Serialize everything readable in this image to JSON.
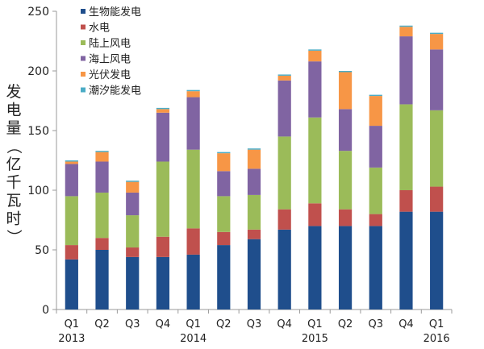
{
  "chart_data": {
    "type": "bar",
    "stacked": true,
    "title": "",
    "xlabel": "",
    "ylabel": "发电量（亿千瓦时）",
    "ylim": [
      0,
      250
    ],
    "yticks": [
      0,
      50,
      100,
      150,
      200,
      250
    ],
    "grid": false,
    "legend_position": "top-left",
    "categories": [
      "Q1 2013",
      "Q2",
      "Q3",
      "Q4",
      "Q1 2014",
      "Q2",
      "Q3",
      "Q4",
      "Q1 2015",
      "Q2",
      "Q3",
      "Q4",
      "Q1 2016"
    ],
    "quarter_labels": [
      "Q1",
      "Q2",
      "Q3",
      "Q4",
      "Q1",
      "Q2",
      "Q3",
      "Q4",
      "Q1",
      "Q2",
      "Q3",
      "Q4",
      "Q1"
    ],
    "year_labels": [
      "2013",
      "",
      "",
      "",
      "2014",
      "",
      "",
      "",
      "2015",
      "",
      "",
      "",
      "2016"
    ],
    "series": [
      {
        "name": "生物能发电",
        "color": "#1f4e8c",
        "values": [
          42,
          50,
          44,
          44,
          46,
          54,
          59,
          67,
          70,
          70,
          70,
          82,
          82
        ]
      },
      {
        "name": "水电",
        "color": "#c0504d",
        "values": [
          12,
          10,
          8,
          17,
          22,
          11,
          8,
          17,
          19,
          14,
          10,
          18,
          21
        ]
      },
      {
        "name": "陆上风电",
        "color": "#9bbb59",
        "values": [
          41,
          38,
          27,
          63,
          66,
          30,
          29,
          61,
          72,
          49,
          39,
          72,
          64
        ]
      },
      {
        "name": "海上风电",
        "color": "#8064a2",
        "values": [
          27,
          26,
          19,
          41,
          44,
          21,
          22,
          47,
          47,
          35,
          35,
          57,
          51
        ]
      },
      {
        "name": "光伏发电",
        "color": "#f79646",
        "values": [
          2,
          8,
          9,
          3,
          5,
          15,
          16,
          4,
          9,
          31,
          25,
          8,
          13
        ]
      },
      {
        "name": "潮汐能发电",
        "color": "#4bacc6",
        "values": [
          1,
          1,
          1,
          1,
          1,
          1,
          1,
          1,
          1,
          1,
          1,
          1,
          1
        ]
      }
    ]
  }
}
